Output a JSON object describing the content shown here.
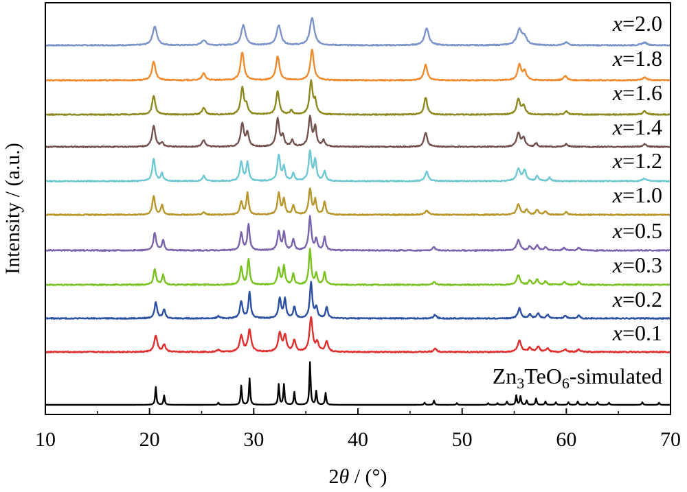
{
  "chart_data": {
    "type": "line",
    "title": "",
    "xlabel": "2θ / (°)",
    "ylabel": "Intensity / (a.u.)",
    "xlim": [
      10,
      70
    ],
    "xticks": [
      10,
      20,
      30,
      40,
      50,
      60,
      70
    ],
    "y_ticks": "none",
    "grid": false,
    "legend": "labels placed at right end of each trace",
    "series": [
      {
        "name": "x=2.0",
        "prefix": "x",
        "suffix": "=2.0",
        "color": "#7b93c9",
        "peaks": [
          [
            20.5,
            0.55,
            0.25
          ],
          [
            25.2,
            0.15,
            0.25
          ],
          [
            29.0,
            0.58,
            0.25
          ],
          [
            32.4,
            0.58,
            0.25
          ],
          [
            35.6,
            0.8,
            0.25
          ],
          [
            46.6,
            0.5,
            0.25
          ],
          [
            55.5,
            0.45,
            0.3
          ],
          [
            56.0,
            0.2,
            0.25
          ],
          [
            60.0,
            0.08,
            0.25
          ],
          [
            67.5,
            0.08,
            0.3
          ]
        ]
      },
      {
        "name": "x=1.8",
        "prefix": "x",
        "suffix": "=1.8",
        "color": "#f08a2c",
        "peaks": [
          [
            20.4,
            0.55,
            0.2
          ],
          [
            25.2,
            0.2,
            0.2
          ],
          [
            28.9,
            0.82,
            0.2
          ],
          [
            32.3,
            0.7,
            0.2
          ],
          [
            35.6,
            0.9,
            0.2
          ],
          [
            46.5,
            0.45,
            0.2
          ],
          [
            55.5,
            0.45,
            0.2
          ],
          [
            56.0,
            0.25,
            0.2
          ],
          [
            59.9,
            0.12,
            0.2
          ],
          [
            67.5,
            0.08,
            0.25
          ]
        ]
      },
      {
        "name": "x=1.6",
        "prefix": "x",
        "suffix": "=1.6",
        "color": "#8c8a1e",
        "peaks": [
          [
            20.4,
            0.55,
            0.18
          ],
          [
            25.2,
            0.2,
            0.18
          ],
          [
            28.9,
            0.78,
            0.18
          ],
          [
            29.3,
            0.25,
            0.15
          ],
          [
            32.3,
            0.68,
            0.18
          ],
          [
            33.6,
            0.12,
            0.15
          ],
          [
            35.5,
            0.95,
            0.18
          ],
          [
            35.9,
            0.35,
            0.15
          ],
          [
            46.5,
            0.5,
            0.18
          ],
          [
            55.4,
            0.45,
            0.2
          ],
          [
            55.9,
            0.25,
            0.18
          ],
          [
            60.0,
            0.1,
            0.18
          ],
          [
            67.5,
            0.1,
            0.2
          ]
        ]
      },
      {
        "name": "x=1.4",
        "prefix": "x",
        "suffix": "=1.4",
        "color": "#73524f",
        "peaks": [
          [
            20.4,
            0.62,
            0.18
          ],
          [
            21.2,
            0.12,
            0.15
          ],
          [
            25.2,
            0.2,
            0.18
          ],
          [
            28.9,
            0.68,
            0.18
          ],
          [
            29.4,
            0.4,
            0.15
          ],
          [
            32.3,
            0.8,
            0.18
          ],
          [
            32.8,
            0.3,
            0.15
          ],
          [
            33.7,
            0.18,
            0.15
          ],
          [
            35.4,
            0.85,
            0.18
          ],
          [
            35.9,
            0.55,
            0.15
          ],
          [
            36.7,
            0.18,
            0.15
          ],
          [
            46.5,
            0.42,
            0.18
          ],
          [
            55.4,
            0.4,
            0.2
          ],
          [
            55.9,
            0.25,
            0.18
          ],
          [
            57.1,
            0.1,
            0.15
          ],
          [
            60.0,
            0.08,
            0.18
          ],
          [
            67.5,
            0.08,
            0.2
          ]
        ]
      },
      {
        "name": "x=1.2",
        "prefix": "x",
        "suffix": "=1.2",
        "color": "#6ec8d4",
        "peaks": [
          [
            20.4,
            0.65,
            0.16
          ],
          [
            21.2,
            0.22,
            0.14
          ],
          [
            25.2,
            0.15,
            0.16
          ],
          [
            28.8,
            0.55,
            0.16
          ],
          [
            29.4,
            0.55,
            0.14
          ],
          [
            32.4,
            0.75,
            0.16
          ],
          [
            32.9,
            0.4,
            0.14
          ],
          [
            33.8,
            0.22,
            0.14
          ],
          [
            35.4,
            0.85,
            0.16
          ],
          [
            35.9,
            0.6,
            0.14
          ],
          [
            36.8,
            0.28,
            0.14
          ],
          [
            46.6,
            0.28,
            0.18
          ],
          [
            55.4,
            0.35,
            0.22
          ],
          [
            56.0,
            0.3,
            0.18
          ],
          [
            57.2,
            0.15,
            0.15
          ],
          [
            58.4,
            0.1,
            0.15
          ],
          [
            67.5,
            0.08,
            0.2
          ]
        ]
      },
      {
        "name": "x=1.0",
        "prefix": "x",
        "suffix": "=1.0",
        "color": "#b8962c",
        "peaks": [
          [
            20.4,
            0.55,
            0.15
          ],
          [
            21.2,
            0.28,
            0.13
          ],
          [
            25.2,
            0.08,
            0.15
          ],
          [
            28.8,
            0.38,
            0.15
          ],
          [
            29.4,
            0.62,
            0.13
          ],
          [
            32.4,
            0.62,
            0.15
          ],
          [
            32.9,
            0.45,
            0.13
          ],
          [
            33.8,
            0.28,
            0.13
          ],
          [
            35.4,
            0.75,
            0.15
          ],
          [
            35.9,
            0.42,
            0.13
          ],
          [
            36.8,
            0.38,
            0.13
          ],
          [
            46.6,
            0.12,
            0.2
          ],
          [
            55.4,
            0.3,
            0.2
          ],
          [
            56.2,
            0.15,
            0.15
          ],
          [
            57.2,
            0.15,
            0.15
          ],
          [
            58.0,
            0.1,
            0.15
          ],
          [
            60.0,
            0.08,
            0.15
          ]
        ]
      },
      {
        "name": "x=0.5",
        "prefix": "x",
        "suffix": "=0.5",
        "color": "#7a63ad",
        "peaks": [
          [
            20.5,
            0.52,
            0.15
          ],
          [
            21.3,
            0.3,
            0.13
          ],
          [
            28.8,
            0.5,
            0.15
          ],
          [
            29.5,
            0.75,
            0.13
          ],
          [
            32.4,
            0.55,
            0.15
          ],
          [
            32.9,
            0.5,
            0.13
          ],
          [
            33.8,
            0.32,
            0.13
          ],
          [
            35.4,
            0.98,
            0.15
          ],
          [
            36.0,
            0.32,
            0.13
          ],
          [
            36.8,
            0.38,
            0.13
          ],
          [
            47.3,
            0.1,
            0.15
          ],
          [
            55.4,
            0.3,
            0.2
          ],
          [
            56.5,
            0.12,
            0.15
          ],
          [
            57.2,
            0.15,
            0.15
          ],
          [
            58.0,
            0.1,
            0.15
          ],
          [
            59.8,
            0.08,
            0.15
          ],
          [
            61.2,
            0.08,
            0.15
          ]
        ]
      },
      {
        "name": "x=0.3",
        "prefix": "x",
        "suffix": "=0.3",
        "color": "#79c21f",
        "peaks": [
          [
            20.5,
            0.45,
            0.14
          ],
          [
            21.3,
            0.28,
            0.12
          ],
          [
            28.8,
            0.5,
            0.14
          ],
          [
            29.5,
            0.72,
            0.12
          ],
          [
            32.4,
            0.45,
            0.14
          ],
          [
            32.9,
            0.52,
            0.12
          ],
          [
            33.8,
            0.3,
            0.12
          ],
          [
            35.4,
            1.0,
            0.13
          ],
          [
            36.0,
            0.3,
            0.12
          ],
          [
            36.8,
            0.35,
            0.12
          ],
          [
            47.3,
            0.08,
            0.15
          ],
          [
            55.4,
            0.28,
            0.18
          ],
          [
            56.5,
            0.12,
            0.14
          ],
          [
            57.2,
            0.15,
            0.14
          ],
          [
            58.0,
            0.1,
            0.14
          ],
          [
            59.8,
            0.08,
            0.14
          ],
          [
            61.2,
            0.08,
            0.14
          ]
        ]
      },
      {
        "name": "x=0.2",
        "prefix": "x",
        "suffix": "=0.2",
        "color": "#2b4fa2",
        "peaks": [
          [
            20.6,
            0.45,
            0.15
          ],
          [
            21.4,
            0.25,
            0.13
          ],
          [
            26.6,
            0.06,
            0.15
          ],
          [
            28.8,
            0.48,
            0.15
          ],
          [
            29.6,
            0.72,
            0.13
          ],
          [
            32.5,
            0.55,
            0.15
          ],
          [
            33.0,
            0.52,
            0.13
          ],
          [
            33.9,
            0.32,
            0.13
          ],
          [
            35.5,
            1.0,
            0.14
          ],
          [
            36.0,
            0.3,
            0.13
          ],
          [
            37.0,
            0.32,
            0.13
          ],
          [
            47.4,
            0.1,
            0.15
          ],
          [
            55.5,
            0.28,
            0.18
          ],
          [
            56.5,
            0.12,
            0.14
          ],
          [
            57.3,
            0.15,
            0.14
          ],
          [
            58.2,
            0.1,
            0.14
          ],
          [
            59.9,
            0.08,
            0.14
          ],
          [
            61.2,
            0.08,
            0.14
          ]
        ]
      },
      {
        "name": "x=0.1",
        "prefix": "x",
        "suffix": "=0.1",
        "color": "#e02d2d",
        "peaks": [
          [
            20.6,
            0.45,
            0.18
          ],
          [
            21.4,
            0.2,
            0.16
          ],
          [
            26.6,
            0.06,
            0.16
          ],
          [
            28.8,
            0.45,
            0.18
          ],
          [
            29.6,
            0.62,
            0.18
          ],
          [
            32.5,
            0.52,
            0.18
          ],
          [
            33.0,
            0.45,
            0.16
          ],
          [
            33.9,
            0.32,
            0.16
          ],
          [
            35.5,
            0.95,
            0.18
          ],
          [
            36.1,
            0.25,
            0.16
          ],
          [
            37.0,
            0.3,
            0.16
          ],
          [
            47.4,
            0.1,
            0.16
          ],
          [
            55.5,
            0.32,
            0.2
          ],
          [
            56.5,
            0.12,
            0.16
          ],
          [
            57.3,
            0.16,
            0.16
          ],
          [
            58.2,
            0.1,
            0.16
          ],
          [
            59.9,
            0.08,
            0.16
          ],
          [
            61.2,
            0.08,
            0.16
          ]
        ]
      },
      {
        "name": "Zn3TeO6-simulated",
        "prefix": "",
        "suffix": "",
        "color": "#000000",
        "label_parts": [
          "Zn",
          "3",
          "TeO",
          "6",
          "-simulated"
        ],
        "peaks": [
          [
            20.6,
            0.42,
            0.07
          ],
          [
            21.4,
            0.22,
            0.07
          ],
          [
            26.6,
            0.05,
            0.07
          ],
          [
            28.8,
            0.45,
            0.07
          ],
          [
            29.6,
            0.62,
            0.07
          ],
          [
            32.4,
            0.48,
            0.07
          ],
          [
            32.9,
            0.48,
            0.07
          ],
          [
            33.9,
            0.3,
            0.07
          ],
          [
            35.4,
            1.0,
            0.07
          ],
          [
            36.0,
            0.32,
            0.07
          ],
          [
            36.9,
            0.28,
            0.07
          ],
          [
            46.4,
            0.05,
            0.07
          ],
          [
            47.3,
            0.1,
            0.07
          ],
          [
            49.5,
            0.04,
            0.07
          ],
          [
            52.5,
            0.04,
            0.07
          ],
          [
            53.4,
            0.04,
            0.07
          ],
          [
            54.3,
            0.08,
            0.07
          ],
          [
            55.2,
            0.22,
            0.07
          ],
          [
            55.6,
            0.2,
            0.07
          ],
          [
            56.2,
            0.1,
            0.07
          ],
          [
            57.1,
            0.15,
            0.07
          ],
          [
            58.0,
            0.08,
            0.07
          ],
          [
            59.0,
            0.06,
            0.07
          ],
          [
            60.2,
            0.06,
            0.07
          ],
          [
            61.1,
            0.08,
            0.07
          ],
          [
            62.0,
            0.05,
            0.07
          ],
          [
            63.0,
            0.06,
            0.07
          ],
          [
            64.1,
            0.05,
            0.07
          ],
          [
            67.3,
            0.06,
            0.07
          ],
          [
            68.9,
            0.05,
            0.07
          ]
        ]
      }
    ]
  }
}
